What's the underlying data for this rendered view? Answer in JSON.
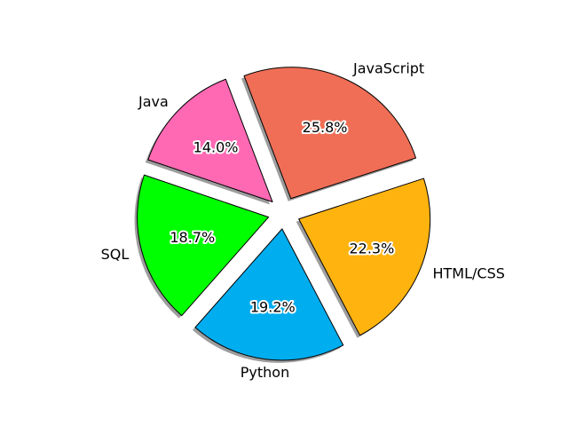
{
  "chart_data": {
    "type": "pie",
    "categories": [
      "JavaScript",
      "Java",
      "SQL",
      "Python",
      "HTML/CSS"
    ],
    "values": [
      25.8,
      14.0,
      18.7,
      19.2,
      22.3
    ],
    "value_labels": [
      "25.8%",
      "14.0%",
      "18.7%",
      "19.2%",
      "22.3%"
    ],
    "colors": [
      "#f06e56",
      "#ff69b4",
      "#00ff00",
      "#00adef",
      "#ffb30f"
    ],
    "exploded": true,
    "title": ""
  }
}
